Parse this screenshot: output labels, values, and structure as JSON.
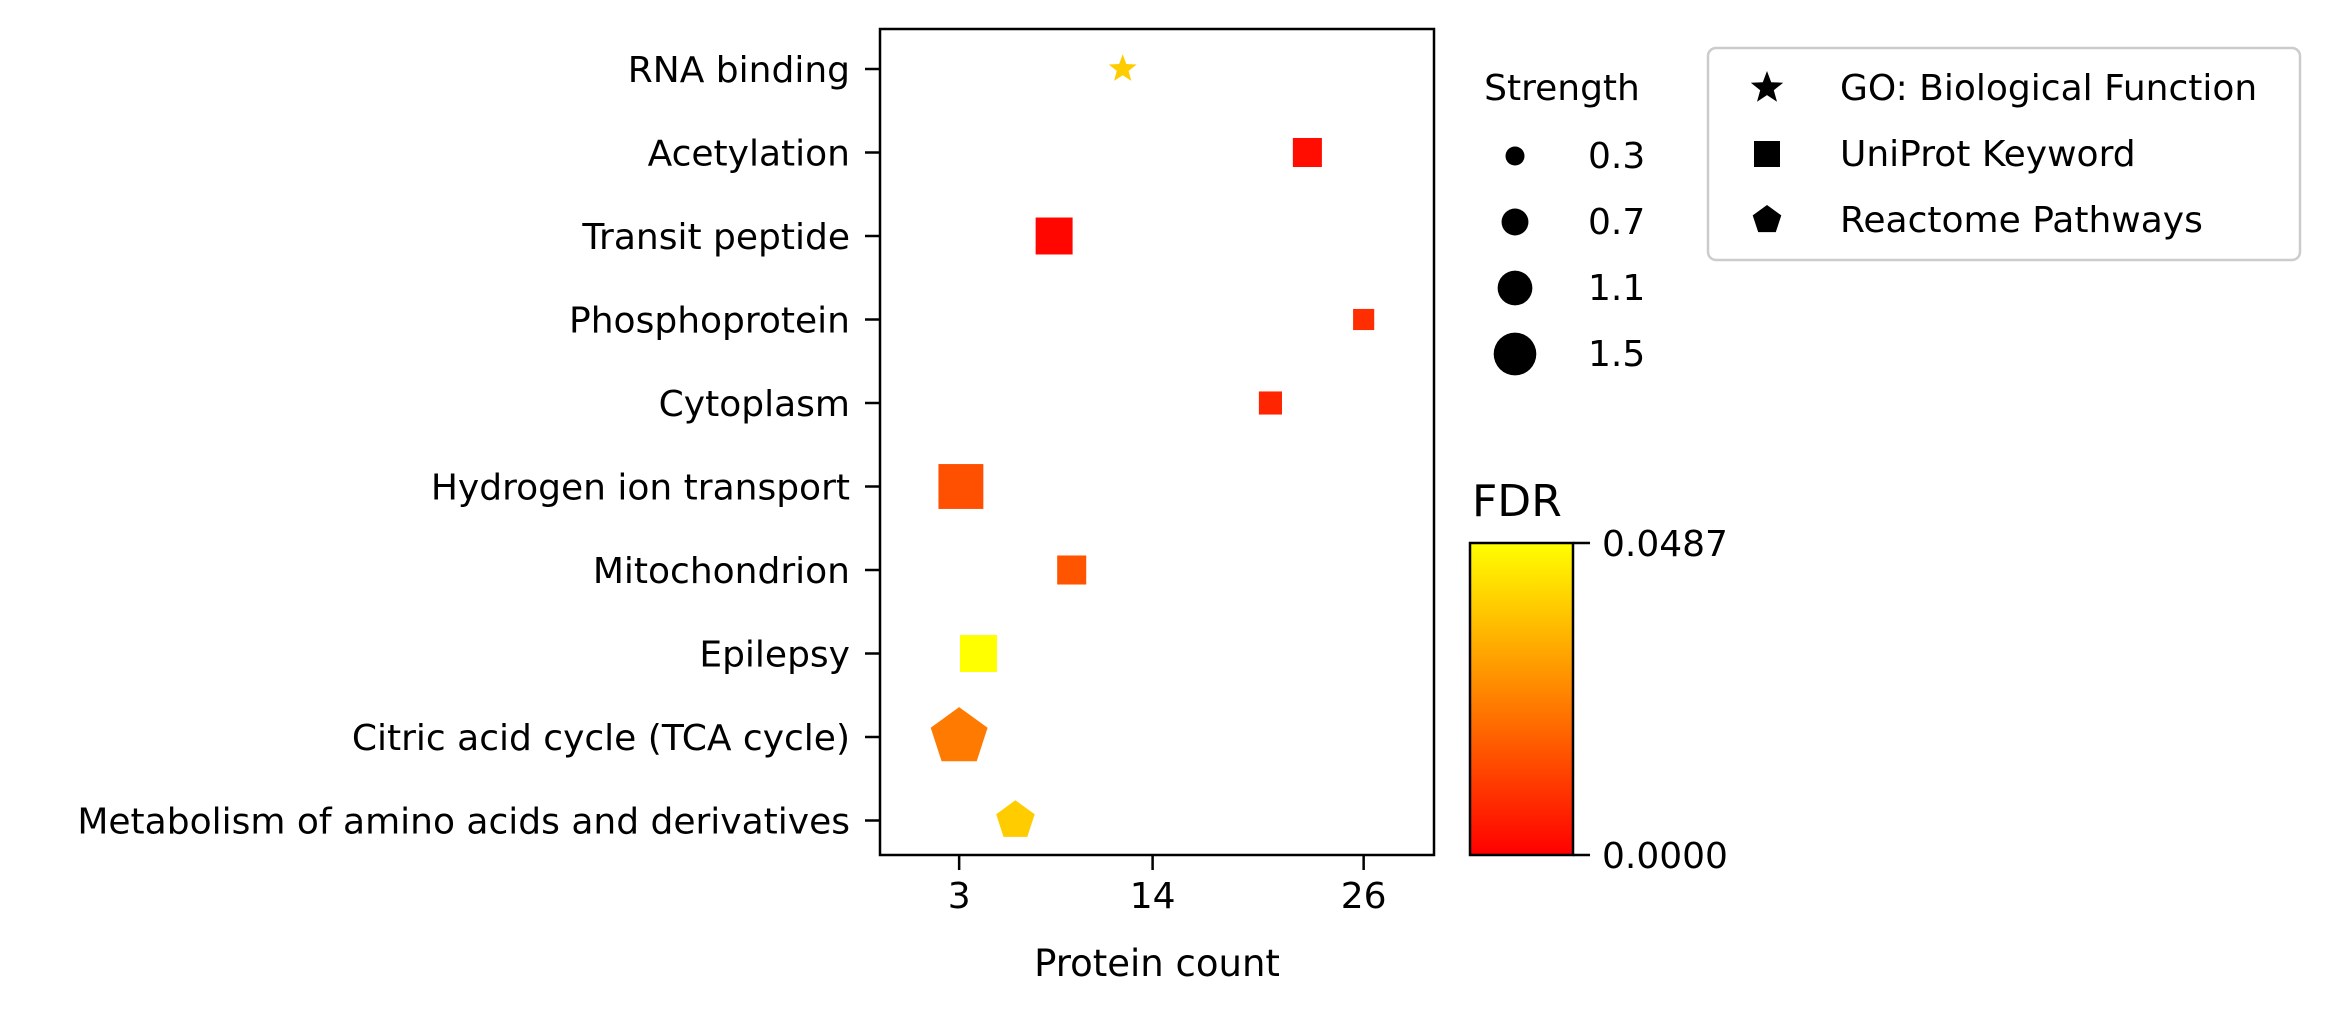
{
  "chart_data": {
    "type": "scatter",
    "xlabel": "Protein count",
    "xticks": [
      3,
      14,
      26
    ],
    "xlim": [
      -1.5,
      30
    ],
    "categories": [
      "RNA binding",
      "Acetylation",
      "Transit peptide",
      "Phosphoprotein",
      "Cytoplasm",
      "Hydrogen ion transport",
      "Mitochondrion",
      "Epilepsy",
      "Citric acid cycle (TCA cycle)",
      "Metabolism of amino acids and derivatives"
    ],
    "points": [
      {
        "category": "RNA binding",
        "count": 12.3,
        "strength": 0.5,
        "fdr": 0.042,
        "source": "GO: Biological Function",
        "color": "#ffcc00"
      },
      {
        "category": "Acetylation",
        "count": 22.8,
        "strength": 0.8,
        "fdr": 0.0005,
        "source": "UniProt Keyword",
        "color": "#ff0d00"
      },
      {
        "category": "Transit peptide",
        "count": 8.4,
        "strength": 1.2,
        "fdr": 0.0002,
        "source": "UniProt Keyword",
        "color": "#ff0700"
      },
      {
        "category": "Phosphoprotein",
        "count": 26.0,
        "strength": 0.4,
        "fdr": 0.007,
        "source": "UniProt Keyword",
        "color": "#ff2e00"
      },
      {
        "category": "Cytoplasm",
        "count": 20.7,
        "strength": 0.5,
        "fdr": 0.005,
        "source": "UniProt Keyword",
        "color": "#ff2500"
      },
      {
        "category": "Hydrogen ion transport",
        "count": 3.1,
        "strength": 1.6,
        "fdr": 0.013,
        "source": "UniProt Keyword",
        "color": "#ff4f00"
      },
      {
        "category": "Mitochondrion",
        "count": 9.4,
        "strength": 0.8,
        "fdr": 0.015,
        "source": "UniProt Keyword",
        "color": "#ff5500"
      },
      {
        "category": "Epilepsy",
        "count": 4.1,
        "strength": 1.2,
        "fdr": 0.0487,
        "source": "UniProt Keyword",
        "color": "#ffff00"
      },
      {
        "category": "Citric acid cycle (TCA cycle)",
        "count": 3.0,
        "strength": 1.5,
        "fdr": 0.023,
        "source": "Reactome Pathways",
        "color": "#ff7a00"
      },
      {
        "category": "Metabolism of amino acids and derivatives",
        "count": 6.2,
        "strength": 0.8,
        "fdr": 0.042,
        "source": "Reactome Pathways",
        "color": "#ffcc00"
      }
    ],
    "size_legend": {
      "title": "Strength",
      "values": [
        "0.3",
        "0.7",
        "1.1",
        "1.5"
      ]
    },
    "shape_legend": [
      {
        "label": "GO: Biological Function",
        "shape": "star"
      },
      {
        "label": "UniProt Keyword",
        "shape": "square"
      },
      {
        "label": "Reactome Pathways",
        "shape": "pentagon"
      }
    ],
    "colorbar": {
      "title": "FDR",
      "min_label": "0.0000",
      "max_label": "0.0487",
      "min_color": "#ff0000",
      "max_color": "#ffff00"
    },
    "grid": false
  }
}
